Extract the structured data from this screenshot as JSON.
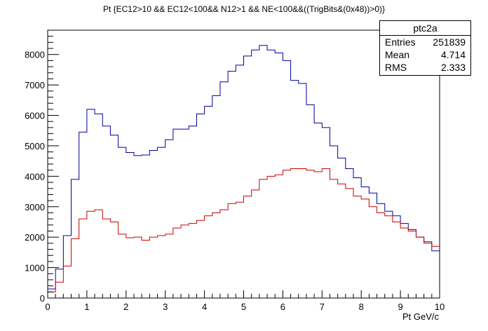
{
  "title": "Pt {EC12>10 && EC12<100&& N12>1 && NE<100&&((TrigBits&(0x48))>0)}",
  "stats_box": {
    "name": "ptc2a",
    "rows": [
      {
        "label": "Entries",
        "value": "251839"
      },
      {
        "label": "Mean",
        "value": "4.714"
      },
      {
        "label": "RMS",
        "value": "2.333"
      }
    ]
  },
  "chart_data": {
    "type": "line",
    "title": "Pt {EC12>10 && EC12<100&& N12>1 && NE<100&&((TrigBits&(0x48))>0)}",
    "xlabel": "Pt GeV/c",
    "ylabel": "",
    "xlim": [
      0,
      10
    ],
    "ylim": [
      0,
      8800
    ],
    "x_ticks": [
      "0",
      "1",
      "2",
      "3",
      "4",
      "5",
      "6",
      "7",
      "8",
      "9",
      "10"
    ],
    "y_ticks": [
      "0",
      "1000",
      "2000",
      "3000",
      "4000",
      "5000",
      "6000",
      "7000",
      "8000"
    ],
    "bin_edges_start": 0,
    "bin_width": 0.2,
    "series": [
      {
        "color": "#000099",
        "values": [
          300,
          950,
          2050,
          3900,
          5450,
          6200,
          6050,
          5650,
          5350,
          4950,
          4780,
          4680,
          4700,
          4850,
          4950,
          5200,
          5550,
          5550,
          5650,
          6050,
          6300,
          6650,
          7100,
          7450,
          7650,
          7950,
          8150,
          8300,
          8150,
          8050,
          7800,
          7150,
          7050,
          6350,
          5750,
          5600,
          5000,
          4600,
          4250,
          3950,
          3650,
          3450,
          3100,
          2850,
          2700,
          2450,
          2250,
          2000,
          1850,
          1550
        ]
      },
      {
        "color": "#cc0000",
        "values": [
          200,
          520,
          1050,
          1950,
          2600,
          2850,
          2900,
          2600,
          2500,
          2100,
          1980,
          2000,
          1900,
          2000,
          2050,
          2100,
          2300,
          2400,
          2450,
          2550,
          2700,
          2800,
          2900,
          3100,
          3150,
          3350,
          3550,
          3900,
          4000,
          4050,
          4200,
          4250,
          4250,
          4200,
          4150,
          4250,
          3900,
          3750,
          3600,
          3350,
          3250,
          3000,
          2800,
          2700,
          2500,
          2300,
          2200,
          2000,
          1800,
          1700
        ]
      }
    ],
    "grid": false,
    "legend": "none"
  }
}
